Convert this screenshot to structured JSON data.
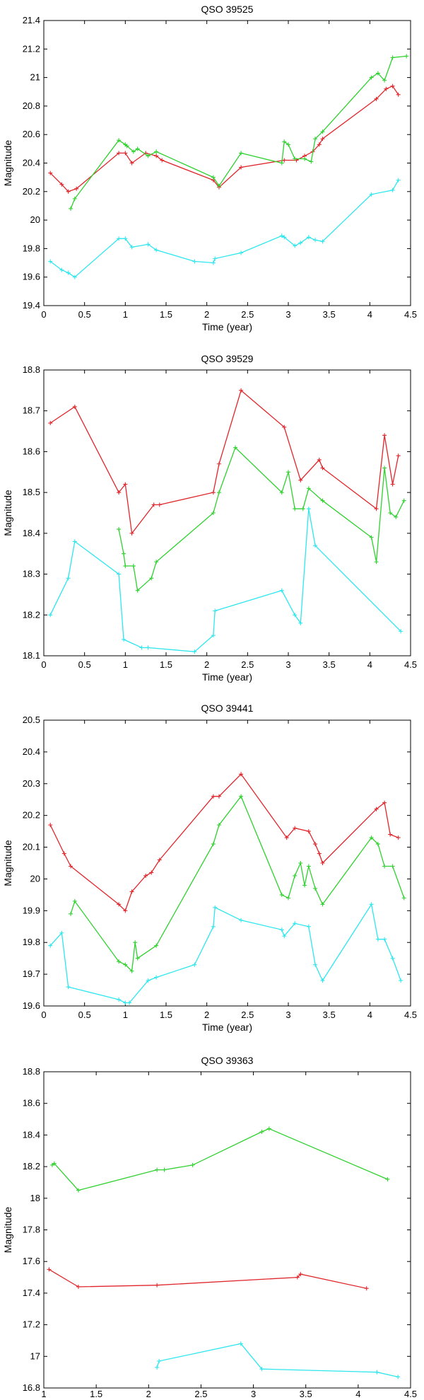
{
  "chart_data": [
    {
      "type": "line",
      "title": "QSO 39525",
      "xlabel": "Time (year)",
      "ylabel": "Magnitude",
      "xlim": [
        0,
        4.5
      ],
      "ylim": [
        19.4,
        21.4
      ],
      "xticks": [
        0,
        0.5,
        1,
        1.5,
        2,
        2.5,
        3,
        3.5,
        4,
        4.5
      ],
      "xtick_labels": [
        "0",
        "0.5",
        "1",
        "1.5",
        "2",
        "2.5",
        "3",
        "3.5",
        "4",
        "4.5"
      ],
      "yticks": [
        19.4,
        19.6,
        19.8,
        20,
        20.2,
        20.4,
        20.6,
        20.8,
        21,
        21.2,
        21.4
      ],
      "ytick_labels": [
        "19.4",
        "19.6",
        "19.8",
        "20",
        "20.2",
        "20.4",
        "20.6",
        "20.8",
        "21",
        "21.2",
        "21.4"
      ],
      "series": [
        {
          "name": "red",
          "color": "#e0262b",
          "x": [
            0.08,
            0.22,
            0.3,
            0.4,
            0.92,
            1.0,
            1.08,
            1.25,
            1.38,
            1.45,
            2.08,
            2.15,
            2.42,
            2.95,
            3.1,
            3.2,
            3.3,
            3.38,
            3.42,
            4.08,
            4.2,
            4.28,
            4.35
          ],
          "y": [
            20.33,
            20.25,
            20.2,
            20.22,
            20.47,
            20.47,
            20.4,
            20.47,
            20.45,
            20.42,
            20.28,
            20.23,
            20.37,
            20.42,
            20.42,
            20.45,
            20.48,
            20.53,
            20.57,
            20.85,
            20.92,
            20.94,
            20.88
          ]
        },
        {
          "name": "green",
          "color": "#2fd12f",
          "x": [
            0.33,
            0.38,
            0.92,
            1.0,
            1.02,
            1.1,
            1.15,
            1.28,
            1.38,
            2.08,
            2.15,
            2.42,
            2.92,
            2.95,
            3.0,
            3.08,
            3.2,
            3.28,
            3.33,
            3.42,
            4.02,
            4.1,
            4.18,
            4.28,
            4.45
          ],
          "y": [
            20.08,
            20.15,
            20.56,
            20.53,
            20.52,
            20.48,
            20.5,
            20.45,
            20.48,
            20.3,
            20.24,
            20.47,
            20.4,
            20.55,
            20.53,
            20.43,
            20.43,
            20.41,
            20.57,
            20.62,
            21.0,
            21.03,
            20.98,
            21.14,
            21.15
          ]
        },
        {
          "name": "cyan",
          "color": "#2ee6ee",
          "x": [
            0.08,
            0.22,
            0.3,
            0.38,
            0.92,
            1.0,
            1.08,
            1.28,
            1.38,
            1.85,
            2.08,
            2.1,
            2.42,
            2.92,
            2.95,
            3.08,
            3.15,
            3.25,
            3.33,
            3.42,
            4.02,
            4.28,
            4.35
          ],
          "y": [
            19.71,
            19.65,
            19.63,
            19.6,
            19.87,
            19.87,
            19.81,
            19.83,
            19.79,
            19.71,
            19.7,
            19.73,
            19.77,
            19.89,
            19.88,
            19.82,
            19.84,
            19.88,
            19.86,
            19.85,
            20.18,
            20.21,
            20.28
          ]
        }
      ]
    },
    {
      "type": "line",
      "title": "QSO 39529",
      "xlabel": "Time (year)",
      "ylabel": "Magnitude",
      "xlim": [
        0,
        4.5
      ],
      "ylim": [
        18.1,
        18.8
      ],
      "xticks": [
        0,
        0.5,
        1,
        1.5,
        2,
        2.5,
        3,
        3.5,
        4,
        4.5
      ],
      "xtick_labels": [
        "0",
        "0.5",
        "1",
        "1.5",
        "2",
        "2.5",
        "3",
        "3.5",
        "4",
        "4.5"
      ],
      "yticks": [
        18.1,
        18.2,
        18.3,
        18.4,
        18.5,
        18.6,
        18.7,
        18.8
      ],
      "ytick_labels": [
        "18.1",
        "18.2",
        "18.3",
        "18.4",
        "18.5",
        "18.6",
        "18.7",
        "18.8"
      ],
      "series": [
        {
          "name": "red",
          "color": "#e0262b",
          "x": [
            0.08,
            0.38,
            0.92,
            1.0,
            1.08,
            1.35,
            1.42,
            2.08,
            2.15,
            2.42,
            2.95,
            3.15,
            3.38,
            3.42,
            4.08,
            4.18,
            4.28,
            4.35
          ],
          "y": [
            18.67,
            18.71,
            18.5,
            18.52,
            18.4,
            18.47,
            18.47,
            18.5,
            18.57,
            18.75,
            18.66,
            18.53,
            18.58,
            18.56,
            18.46,
            18.64,
            18.52,
            18.59
          ]
        },
        {
          "name": "green",
          "color": "#2fd12f",
          "x": [
            0.92,
            0.98,
            1.0,
            1.1,
            1.15,
            1.32,
            1.38,
            2.08,
            2.15,
            2.35,
            2.92,
            3.0,
            3.08,
            3.18,
            3.25,
            3.42,
            4.02,
            4.08,
            4.18,
            4.25,
            4.32,
            4.42
          ],
          "y": [
            18.41,
            18.35,
            18.32,
            18.32,
            18.26,
            18.29,
            18.33,
            18.45,
            18.5,
            18.61,
            18.5,
            18.55,
            18.46,
            18.46,
            18.51,
            18.48,
            18.39,
            18.33,
            18.56,
            18.45,
            18.44,
            18.48
          ]
        },
        {
          "name": "cyan",
          "color": "#2ee6ee",
          "x": [
            0.08,
            0.3,
            0.38,
            0.92,
            0.98,
            1.2,
            1.28,
            1.85,
            2.08,
            2.1,
            2.92,
            3.08,
            3.15,
            3.25,
            3.33,
            4.38
          ],
          "y": [
            18.2,
            18.29,
            18.38,
            18.3,
            18.14,
            18.12,
            18.12,
            18.11,
            18.15,
            18.21,
            18.26,
            18.2,
            18.18,
            18.46,
            18.37,
            18.16
          ]
        }
      ]
    },
    {
      "type": "line",
      "title": "QSO 39441",
      "xlabel": "Time (year)",
      "ylabel": "Magnitude",
      "xlim": [
        0,
        4.5
      ],
      "ylim": [
        19.6,
        20.5
      ],
      "xticks": [
        0,
        0.5,
        1,
        1.5,
        2,
        2.5,
        3,
        3.5,
        4,
        4.5
      ],
      "xtick_labels": [
        "0",
        "0.5",
        "1",
        "1.5",
        "2",
        "2.5",
        "3",
        "3.5",
        "4",
        "4.5"
      ],
      "yticks": [
        19.6,
        19.7,
        19.8,
        19.9,
        20,
        20.1,
        20.2,
        20.3,
        20.4,
        20.5
      ],
      "ytick_labels": [
        "19.6",
        "19.7",
        "19.8",
        "19.9",
        "20",
        "20.1",
        "20.2",
        "20.3",
        "20.4",
        "20.5"
      ],
      "series": [
        {
          "name": "red",
          "color": "#e0262b",
          "x": [
            0.08,
            0.25,
            0.33,
            0.92,
            1.0,
            1.08,
            1.25,
            1.32,
            1.42,
            2.08,
            2.15,
            2.42,
            2.98,
            3.08,
            3.25,
            3.33,
            3.38,
            3.42,
            4.08,
            4.18,
            4.25,
            4.35
          ],
          "y": [
            20.17,
            20.08,
            20.04,
            19.92,
            19.9,
            19.96,
            20.01,
            20.02,
            20.06,
            20.26,
            20.26,
            20.33,
            20.13,
            20.16,
            20.15,
            20.11,
            20.08,
            20.05,
            20.22,
            20.24,
            20.14,
            20.13
          ]
        },
        {
          "name": "green",
          "color": "#2fd12f",
          "x": [
            0.33,
            0.38,
            0.92,
            1.0,
            1.08,
            1.12,
            1.15,
            1.38,
            2.08,
            2.15,
            2.42,
            2.92,
            3.0,
            3.08,
            3.15,
            3.2,
            3.25,
            3.33,
            3.42,
            4.02,
            4.1,
            4.18,
            4.28,
            4.42
          ],
          "y": [
            19.89,
            19.93,
            19.74,
            19.73,
            19.71,
            19.8,
            19.75,
            19.79,
            20.11,
            20.17,
            20.26,
            19.95,
            19.94,
            20.01,
            20.05,
            19.98,
            20.04,
            19.97,
            19.92,
            20.13,
            20.11,
            20.04,
            20.04,
            19.94
          ]
        },
        {
          "name": "cyan",
          "color": "#2ee6ee",
          "x": [
            0.08,
            0.22,
            0.3,
            0.92,
            1.0,
            1.05,
            1.28,
            1.38,
            1.85,
            2.08,
            2.1,
            2.42,
            2.92,
            2.95,
            3.08,
            3.25,
            3.33,
            3.42,
            4.02,
            4.1,
            4.18,
            4.28,
            4.38
          ],
          "y": [
            19.79,
            19.83,
            19.66,
            19.62,
            19.61,
            19.61,
            19.68,
            19.69,
            19.73,
            19.85,
            19.91,
            19.87,
            19.84,
            19.82,
            19.86,
            19.85,
            19.73,
            19.68,
            19.92,
            19.81,
            19.81,
            19.75,
            19.68
          ]
        }
      ]
    },
    {
      "type": "line",
      "title": "QSO 39363",
      "xlabel": "Time (year)",
      "ylabel": "Magnitude",
      "xlim": [
        1,
        4.5
      ],
      "ylim": [
        16.8,
        18.8
      ],
      "xticks": [
        1,
        1.5,
        2,
        2.5,
        3,
        3.5,
        4,
        4.5
      ],
      "xtick_labels": [
        "1",
        "1.5",
        "2",
        "2.5",
        "3",
        "3.5",
        "4",
        "4.5"
      ],
      "yticks": [
        16.8,
        17,
        17.2,
        17.4,
        17.6,
        17.8,
        18,
        18.2,
        18.4,
        18.6,
        18.8
      ],
      "ytick_labels": [
        "16.8",
        "17",
        "17.2",
        "17.4",
        "17.6",
        "17.8",
        "18",
        "18.2",
        "18.4",
        "18.6",
        "18.8"
      ],
      "series": [
        {
          "name": "green",
          "color": "#2fd12f",
          "x": [
            1.08,
            1.1,
            1.33,
            2.08,
            2.15,
            2.42,
            3.08,
            3.15,
            4.28
          ],
          "y": [
            18.21,
            18.22,
            18.05,
            18.18,
            18.18,
            18.21,
            18.42,
            18.44,
            18.12
          ]
        },
        {
          "name": "red",
          "color": "#e0262b",
          "x": [
            1.05,
            1.33,
            2.08,
            3.42,
            3.45,
            4.08
          ],
          "y": [
            17.55,
            17.44,
            17.45,
            17.5,
            17.52,
            17.43
          ]
        },
        {
          "name": "cyan",
          "color": "#2ee6ee",
          "x": [
            2.08,
            2.1,
            2.88,
            3.08,
            4.18,
            4.38
          ],
          "y": [
            16.93,
            16.97,
            17.08,
            16.92,
            16.9,
            16.87
          ]
        }
      ]
    }
  ]
}
